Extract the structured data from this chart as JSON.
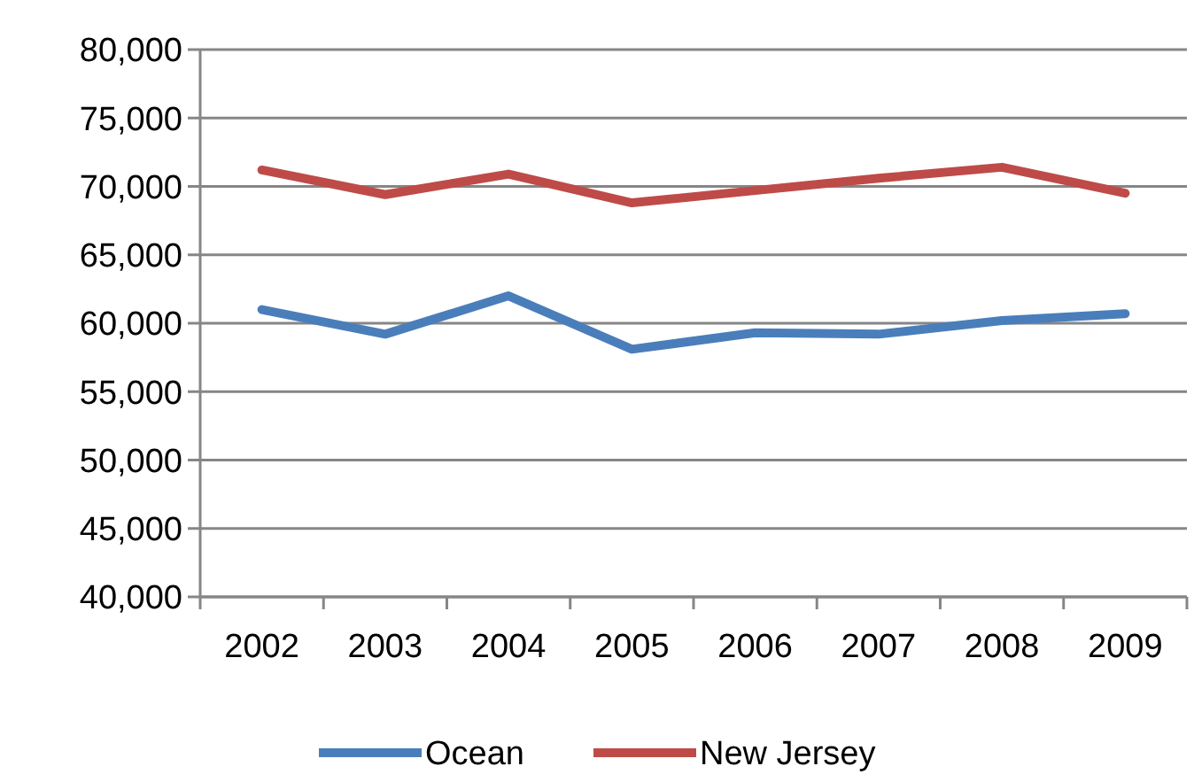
{
  "chart_data": {
    "type": "line",
    "categories": [
      "2002",
      "2003",
      "2004",
      "2005",
      "2006",
      "2007",
      "2008",
      "2009"
    ],
    "series": [
      {
        "name": "Ocean",
        "color": "#4a7ebb",
        "values": [
          61000,
          59200,
          62000,
          58100,
          59300,
          59200,
          60200,
          60700
        ]
      },
      {
        "name": "New Jersey",
        "color": "#be4b48",
        "values": [
          71200,
          69400,
          70900,
          68800,
          69700,
          70600,
          71400,
          69500
        ]
      }
    ],
    "ylim": [
      40000,
      80000
    ],
    "yticks": [
      {
        "value": 40000,
        "label": "40,000"
      },
      {
        "value": 45000,
        "label": "45,000"
      },
      {
        "value": 50000,
        "label": "50,000"
      },
      {
        "value": 55000,
        "label": "55,000"
      },
      {
        "value": 60000,
        "label": "60,000"
      },
      {
        "value": 65000,
        "label": "65,000"
      },
      {
        "value": 70000,
        "label": "70,000"
      },
      {
        "value": 75000,
        "label": "75,000"
      },
      {
        "value": 80000,
        "label": "80,000"
      }
    ],
    "grid": "y",
    "legend": "bottom",
    "marker": "none",
    "line_style": "solid"
  }
}
